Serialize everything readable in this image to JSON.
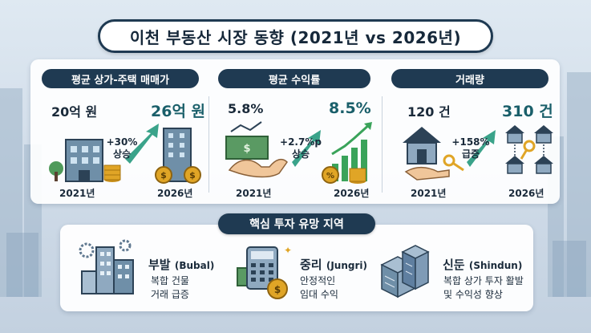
{
  "title": "이천 부동산 시장 동향 (2021년 vs 2026년)",
  "colors": {
    "navy": "#1f3a52",
    "teal": "#1a5f6a",
    "green": "#3aa35a",
    "gold": "#e0a526"
  },
  "cards": [
    {
      "heading": "평균 상가-주택 매매가",
      "value_2021": "20억 원",
      "value_2026": "26억 원",
      "change": "+30%",
      "change_label": "상승",
      "year_2021": "2021년",
      "year_2026": "2026년",
      "icons": [
        "building-icon",
        "money-bag-icon",
        "coin-stack-icon",
        "up-arrow-icon"
      ]
    },
    {
      "heading": "평균 수익률",
      "value_2021": "5.8%",
      "value_2026": "8.5%",
      "change": "+2.7%p",
      "change_label": "상승",
      "year_2021": "2021년",
      "year_2026": "2026년",
      "icons": [
        "handshake-icon",
        "bar-chart-icon",
        "percent-coin-icon",
        "up-arrow-icon"
      ]
    },
    {
      "heading": "거래량",
      "value_2021": "120 건",
      "value_2026": "310 건",
      "change": "+158%",
      "change_label": "급증",
      "year_2021": "2021년",
      "year_2026": "2026년",
      "icons": [
        "house-key-icon",
        "house-network-icon",
        "up-arrow-icon"
      ]
    }
  ],
  "regions_heading": "핵심 투자 유망 지역",
  "regions": [
    {
      "name": "부발",
      "name_en": "(Bubal)",
      "desc1": "복합 건물",
      "desc2": "거래 급증",
      "icon": "gear-buildings-icon"
    },
    {
      "name": "중리",
      "name_en": "(Jungri)",
      "desc1": "안정적인",
      "desc2": "임대 수익",
      "icon": "calculator-coins-icon"
    },
    {
      "name": "신둔",
      "name_en": "(Shindun)",
      "desc1": "복합 상가 투자 활발",
      "desc2": "및 수익성 향상",
      "icon": "city-blocks-icon"
    }
  ]
}
